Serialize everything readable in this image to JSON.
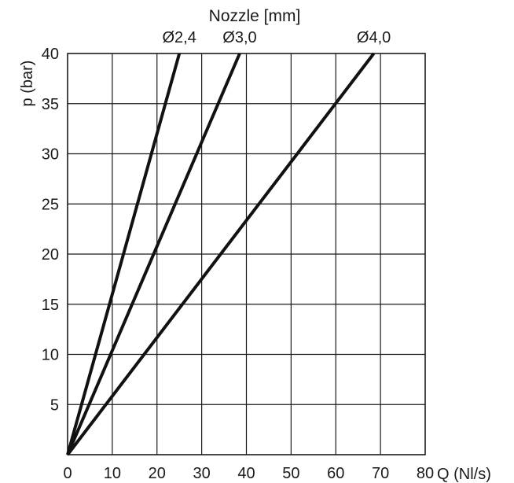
{
  "chart_data": {
    "type": "line",
    "title": "Nozzle [mm]",
    "xlabel": "Q (Nl/s)",
    "ylabel": "p (bar)",
    "xlim": [
      0,
      80
    ],
    "ylim": [
      0,
      40
    ],
    "x_ticks": [
      0,
      10,
      20,
      30,
      40,
      50,
      60,
      70,
      80
    ],
    "y_ticks": [
      5,
      10,
      15,
      20,
      25,
      30,
      35,
      40
    ],
    "grid": true,
    "series": [
      {
        "name": "Ø2,4",
        "x": [
          0,
          25
        ],
        "y": [
          0,
          40
        ]
      },
      {
        "name": "Ø3,0",
        "x": [
          0,
          38.5
        ],
        "y": [
          0,
          40
        ]
      },
      {
        "name": "Ø4,0",
        "x": [
          0,
          68.5
        ],
        "y": [
          0,
          40
        ]
      }
    ]
  }
}
